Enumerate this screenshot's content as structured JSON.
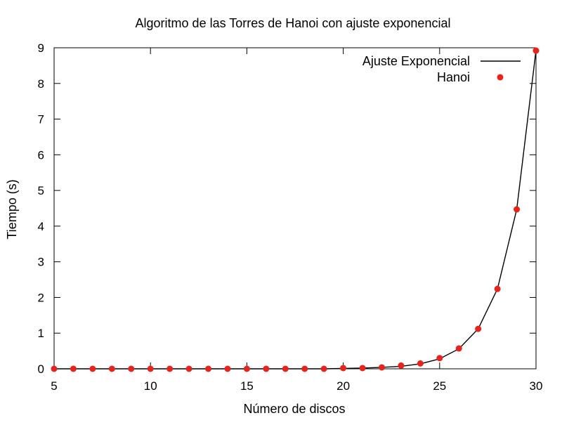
{
  "chart_data": {
    "type": "line",
    "title": "Algoritmo de las Torres de Hanoi con ajuste exponencial",
    "xlabel": "Número de discos",
    "ylabel": "Tiempo (s)",
    "xlim": [
      5,
      30
    ],
    "ylim": [
      0,
      9
    ],
    "x_ticks": [
      "5",
      "10",
      "15",
      "20",
      "25",
      "30"
    ],
    "y_ticks": [
      "0",
      "1",
      "2",
      "3",
      "4",
      "5",
      "6",
      "7",
      "8",
      "9"
    ],
    "grid": false,
    "legend_position": "top-right",
    "series": [
      {
        "name": "Ajuste Exponencial",
        "kind": "line",
        "color": "#000000",
        "function": "exponential",
        "x": [
          5,
          6,
          7,
          8,
          9,
          10,
          11,
          12,
          13,
          14,
          15,
          16,
          17,
          18,
          19,
          20,
          21,
          22,
          23,
          24,
          25,
          26,
          27,
          28,
          29,
          30
        ],
        "y": [
          0.0,
          0.0,
          0.0,
          0.0,
          0.0,
          0.0,
          0.0,
          0.0,
          0.0,
          0.0,
          0.0,
          0.0,
          0.0,
          0.0,
          0.0,
          0.01,
          0.02,
          0.04,
          0.07,
          0.14,
          0.28,
          0.56,
          1.12,
          2.24,
          4.47,
          8.93
        ]
      },
      {
        "name": "Hanoi",
        "kind": "scatter",
        "color": "#e8231b",
        "x": [
          5,
          6,
          7,
          8,
          9,
          10,
          11,
          12,
          13,
          14,
          15,
          16,
          17,
          18,
          19,
          20,
          21,
          22,
          23,
          24,
          25,
          26,
          27,
          28,
          29,
          30
        ],
        "y": [
          0.0,
          0.0,
          0.0,
          0.0,
          0.0,
          0.0,
          0.0,
          0.0,
          0.0,
          0.0,
          0.0,
          0.0,
          0.0,
          0.0,
          0.0,
          0.02,
          0.02,
          0.04,
          0.09,
          0.15,
          0.3,
          0.57,
          1.12,
          2.24,
          4.47,
          8.92
        ]
      }
    ]
  }
}
